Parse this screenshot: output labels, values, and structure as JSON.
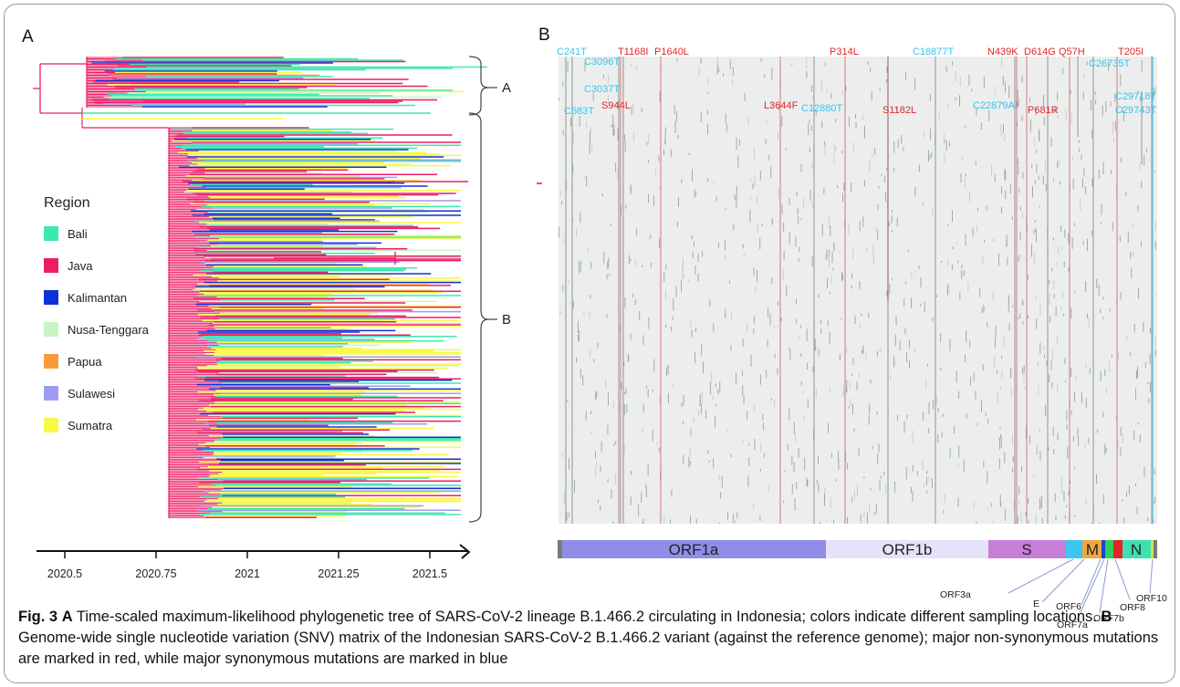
{
  "panels": {
    "a_label": "A",
    "b_label": "B"
  },
  "legend": {
    "title": "Region",
    "items": [
      {
        "label": "Bali",
        "color": "#3be8b0"
      },
      {
        "label": "Java",
        "color": "#ee1c66"
      },
      {
        "label": "Kalimantan",
        "color": "#1030d8"
      },
      {
        "label": "Nusa-Tenggara",
        "color": "#c6f5c6"
      },
      {
        "label": "Papua",
        "color": "#f89a3c"
      },
      {
        "label": "Sulawesi",
        "color": "#9d9cf2"
      },
      {
        "label": "Sumatra",
        "color": "#f8f84a"
      }
    ]
  },
  "clades": {
    "a": "A",
    "b": "B"
  },
  "tree_axis": {
    "ticks": [
      "2020.5",
      "2020.75",
      "2021",
      "2021.25",
      "2021.5"
    ]
  },
  "mutations": {
    "nonsynonymous_color": "#e0262a",
    "synonymous_color": "#35c4ec",
    "top": [
      {
        "label": "C241T",
        "type": "syn"
      },
      {
        "label": "C3096T",
        "type": "syn"
      },
      {
        "label": "T1168I",
        "type": "nonsyn"
      },
      {
        "label": "P1640L",
        "type": "nonsyn"
      },
      {
        "label": "P314L",
        "type": "nonsyn"
      },
      {
        "label": "C18877T",
        "type": "syn"
      },
      {
        "label": "N439K",
        "type": "nonsyn"
      },
      {
        "label": "D614G",
        "type": "nonsyn"
      },
      {
        "label": "Q57H",
        "type": "nonsyn"
      },
      {
        "label": "T205I",
        "type": "nonsyn"
      },
      {
        "label": "C26735T",
        "type": "syn"
      },
      {
        "label": "C3037T",
        "type": "syn"
      },
      {
        "label": "C29718T",
        "type": "syn"
      },
      {
        "label": "C683T",
        "type": "syn"
      },
      {
        "label": "S944L",
        "type": "nonsyn"
      },
      {
        "label": "L3644F",
        "type": "nonsyn"
      },
      {
        "label": "C12880T",
        "type": "syn"
      },
      {
        "label": "S1182L",
        "type": "nonsyn"
      },
      {
        "label": "C22879A",
        "type": "syn"
      },
      {
        "label": "P681R",
        "type": "nonsyn"
      },
      {
        "label": "C29743T",
        "type": "syn"
      }
    ]
  },
  "genome": {
    "genes": [
      {
        "label": "ORF1a",
        "color": "#8f8de8"
      },
      {
        "label": "ORF1b",
        "color": "#e4e3fa"
      },
      {
        "label": "S",
        "color": "#c67fd6"
      },
      {
        "label": "",
        "color": "#3cc6f0"
      },
      {
        "label": "M",
        "color": "#f0a742"
      },
      {
        "label": "",
        "color": "#1a44d0"
      },
      {
        "label": "",
        "color": "#2fcf5a"
      },
      {
        "label": "",
        "color": "#e0262a"
      },
      {
        "label": "N",
        "color": "#3fe0b0"
      },
      {
        "label": "",
        "color": "#d6e24c"
      }
    ],
    "small_orfs": [
      "ORF3a",
      "E",
      "ORF6",
      "ORF7a",
      "ORF7b",
      "ORF8",
      "ORF10"
    ]
  },
  "caption": {
    "fig_label": "Fig. 3",
    "a_bold": "A",
    "a_text": " Time-scaled maximum-likelihood phylogenetic tree of SARS-CoV-2 lineage B.1.466.2 circulating in Indonesia; colors indicate different sampling locations. ",
    "b_bold": "B",
    "b_text": " Genome-wide single nucleotide variation (SNV) matrix of the Indonesian SARS-CoV-2 B.1.466.2 variant (against the reference genome); major non-synonymous mutations are marked in red, while major synonymous mutations are marked in blue"
  }
}
